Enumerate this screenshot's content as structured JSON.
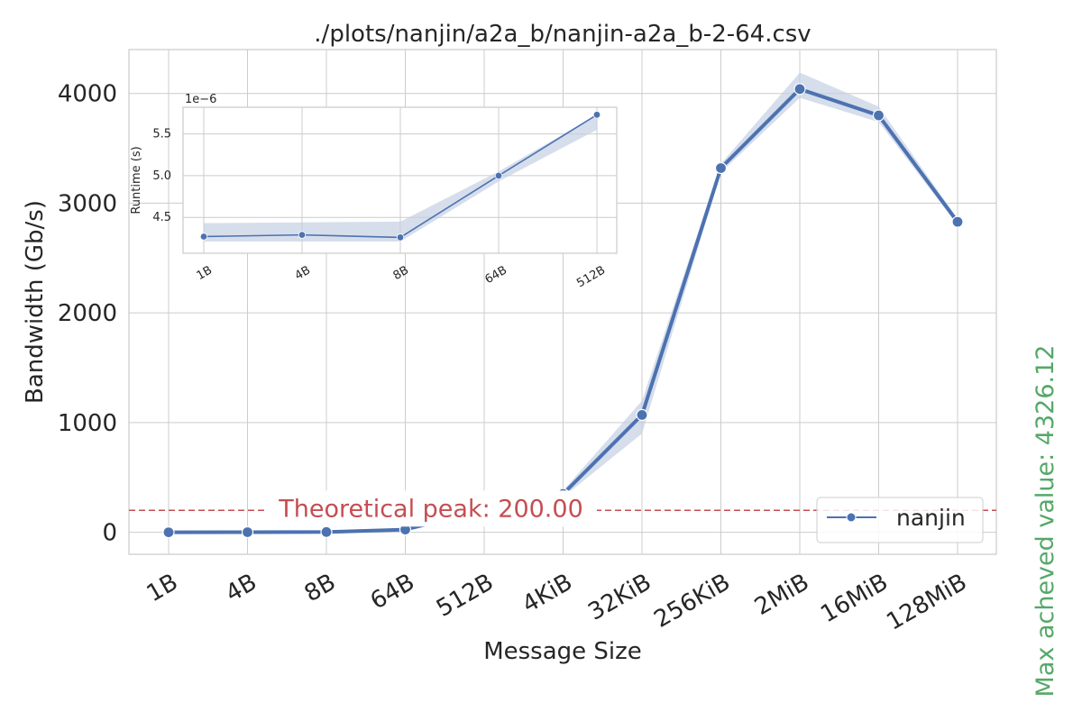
{
  "chart_data": [
    {
      "type": "line",
      "title": "./plots/nanjin/a2a_b/nanjin-a2a_b-2-64.csv",
      "xlabel": "Message Size",
      "ylabel": "Bandwidth (Gb/s)",
      "categories": [
        "1B",
        "4B",
        "8B",
        "64B",
        "512B",
        "4KiB",
        "32KiB",
        "256KiB",
        "2MiB",
        "16MiB",
        "128MiB"
      ],
      "series": [
        {
          "name": "nanjin",
          "values": [
            0.4,
            1.4,
            2.8,
            25,
            200,
            350,
            1070,
            3320,
            4040,
            3800,
            2830
          ],
          "band_low": [
            0.3,
            1.2,
            2.5,
            22,
            180,
            320,
            900,
            3280,
            3960,
            3740,
            2800
          ],
          "band_high": [
            0.5,
            1.6,
            3.0,
            28,
            220,
            380,
            1200,
            3360,
            4190,
            3880,
            2860
          ]
        }
      ],
      "yticks": [
        0,
        1000,
        2000,
        3000,
        4000
      ],
      "ylim": [
        -200,
        4400
      ],
      "grid": true,
      "legend": {
        "placement": "bottom-right",
        "entries": [
          "nanjin"
        ]
      },
      "reference_line": {
        "label": "Theoretical peak: 200.00",
        "value": 200,
        "color": "#c44e52"
      },
      "side_annotation": {
        "label": "Max acheved value: 4326.12",
        "color": "#55a868"
      },
      "colors": {
        "series": "#4c72b0",
        "band": "#c5d0e4"
      }
    },
    {
      "type": "line",
      "title": "",
      "xlabel": "",
      "ylabel": "Runtime (s)",
      "offset_label": "1e−6",
      "categories": [
        "1B",
        "4B",
        "8B",
        "64B",
        "512B"
      ],
      "series": [
        {
          "name": "nanjin",
          "values": [
            4.27,
            4.29,
            4.26,
            5.0,
            5.73
          ],
          "band_low": [
            4.21,
            4.21,
            4.21,
            4.93,
            5.55
          ],
          "band_high": [
            4.43,
            4.44,
            4.45,
            5.05,
            5.73
          ]
        }
      ],
      "yticks": [
        "4.5",
        "5.0",
        "5.5"
      ],
      "ytick_values": [
        4.5,
        5.0,
        5.5
      ],
      "ylim": [
        4.07,
        5.82
      ],
      "grid": true
    }
  ]
}
